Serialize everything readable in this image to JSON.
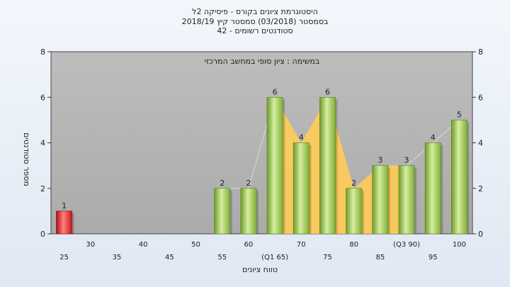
{
  "chart_data": {
    "type": "bar",
    "title_lines": [
      "היסטוגרמת ציונים בקורס - פיסיקה 2ל",
      "בסמסטר (03/2018) סמסטר קיץ 2018/19",
      "42 - סטודנטים רשומים"
    ],
    "annotation": "במשימה : ציון סופי במחשב המרכזי",
    "xlabel": "טווח ציונים",
    "ylabel": "מספר סטודנטים",
    "ylim": [
      0,
      8
    ],
    "yticks": [
      0,
      2,
      4,
      6,
      8
    ],
    "grid": false,
    "categories": [
      "25",
      "30",
      "35",
      "40",
      "45",
      "50",
      "55",
      "60",
      "65",
      "70",
      "75",
      "80",
      "85",
      "90",
      "95",
      "100"
    ],
    "tick_labels": [
      "25",
      "30",
      "35",
      "40",
      "45",
      "50",
      "55",
      "60",
      "(Q1 65)",
      "70",
      "75",
      "80",
      "85",
      "(Q3 90)",
      "95",
      "100"
    ],
    "values": [
      1,
      0,
      0,
      0,
      0,
      0,
      2,
      2,
      6,
      4,
      6,
      2,
      3,
      3,
      4,
      5
    ],
    "quartile_band": [
      "65",
      "90"
    ],
    "colors": {
      "plot_bg": "#b5b5b5",
      "bar_green": "#8fbf45",
      "bar_green_light": "#d6eea0",
      "bar_red": "#d42020",
      "bar_red_light": "#ff8080",
      "band": "#ffcc55"
    }
  }
}
